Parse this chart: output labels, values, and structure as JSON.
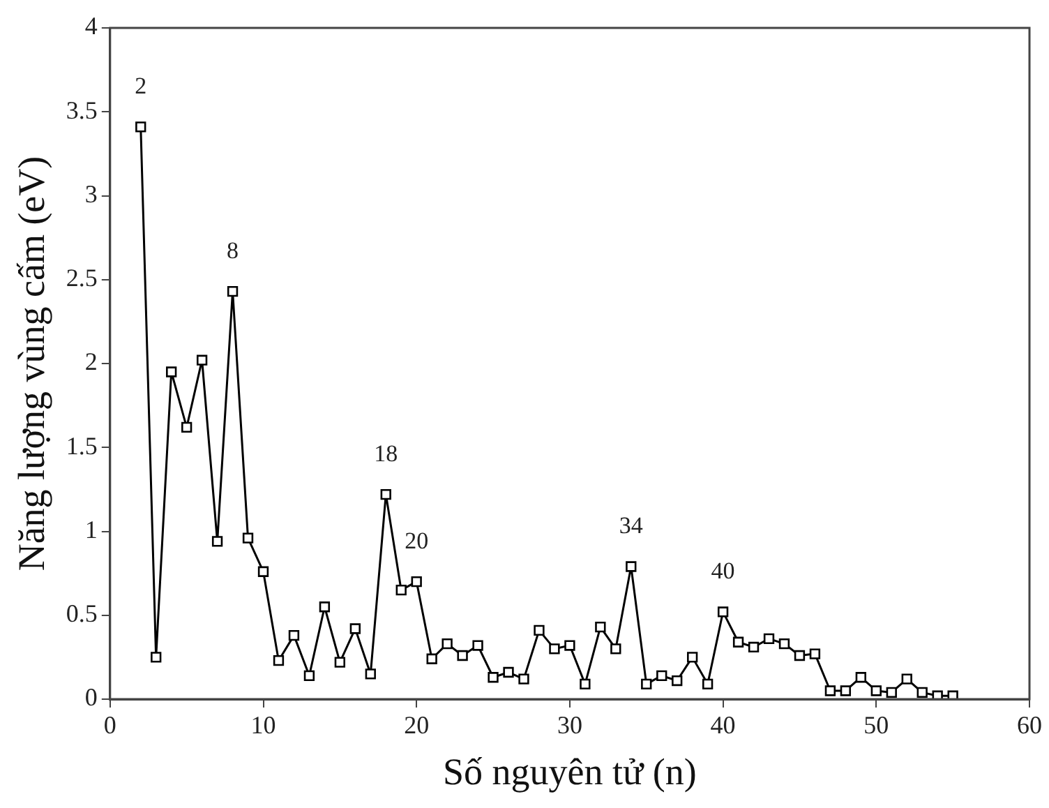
{
  "chart_data": {
    "type": "line",
    "xlabel": "Số nguyên tử (n)",
    "ylabel": "Năng lượng vùng cấm (eV)",
    "x": [
      2,
      3,
      4,
      5,
      6,
      7,
      8,
      9,
      10,
      11,
      12,
      13,
      14,
      15,
      16,
      17,
      18,
      19,
      20,
      21,
      22,
      23,
      24,
      25,
      26,
      27,
      28,
      29,
      30,
      31,
      32,
      33,
      34,
      35,
      36,
      37,
      38,
      39,
      40,
      41,
      42,
      43,
      44,
      45,
      46,
      47,
      48,
      49,
      50,
      51,
      52,
      53,
      54,
      55
    ],
    "series": [
      {
        "color": "#000000",
        "values": [
          3.41,
          0.25,
          1.95,
          1.62,
          2.02,
          0.94,
          2.43,
          0.96,
          0.76,
          0.23,
          0.38,
          0.14,
          0.55,
          0.22,
          0.42,
          0.15,
          1.22,
          0.65,
          0.7,
          0.24,
          0.33,
          0.26,
          0.32,
          0.13,
          0.16,
          0.12,
          0.41,
          0.3,
          0.32,
          0.09,
          0.43,
          0.3,
          0.79,
          0.09,
          0.14,
          0.11,
          0.25,
          0.09,
          0.52,
          0.34,
          0.31,
          0.36,
          0.33,
          0.26,
          0.27,
          0.05,
          0.05,
          0.13,
          0.05,
          0.04,
          0.12,
          0.04,
          0.02,
          0.02
        ]
      }
    ],
    "xlim": [
      0,
      60
    ],
    "xticks": [
      0,
      10,
      20,
      30,
      40,
      50,
      60
    ],
    "ylim": [
      0,
      4
    ],
    "yticks": [
      0,
      0.5,
      1,
      1.5,
      2,
      2.5,
      3,
      3.5,
      4
    ],
    "grid": false,
    "legend": false,
    "marker": "square",
    "line_style": "solid",
    "annotations": [
      {
        "text": "2",
        "x": 2,
        "y": 3.41
      },
      {
        "text": "8",
        "x": 8,
        "y": 2.43
      },
      {
        "text": "18",
        "x": 18,
        "y": 1.22
      },
      {
        "text": "20",
        "x": 20,
        "y": 0.7
      },
      {
        "text": "34",
        "x": 34,
        "y": 0.79
      },
      {
        "text": "40",
        "x": 40,
        "y": 0.52
      }
    ]
  }
}
